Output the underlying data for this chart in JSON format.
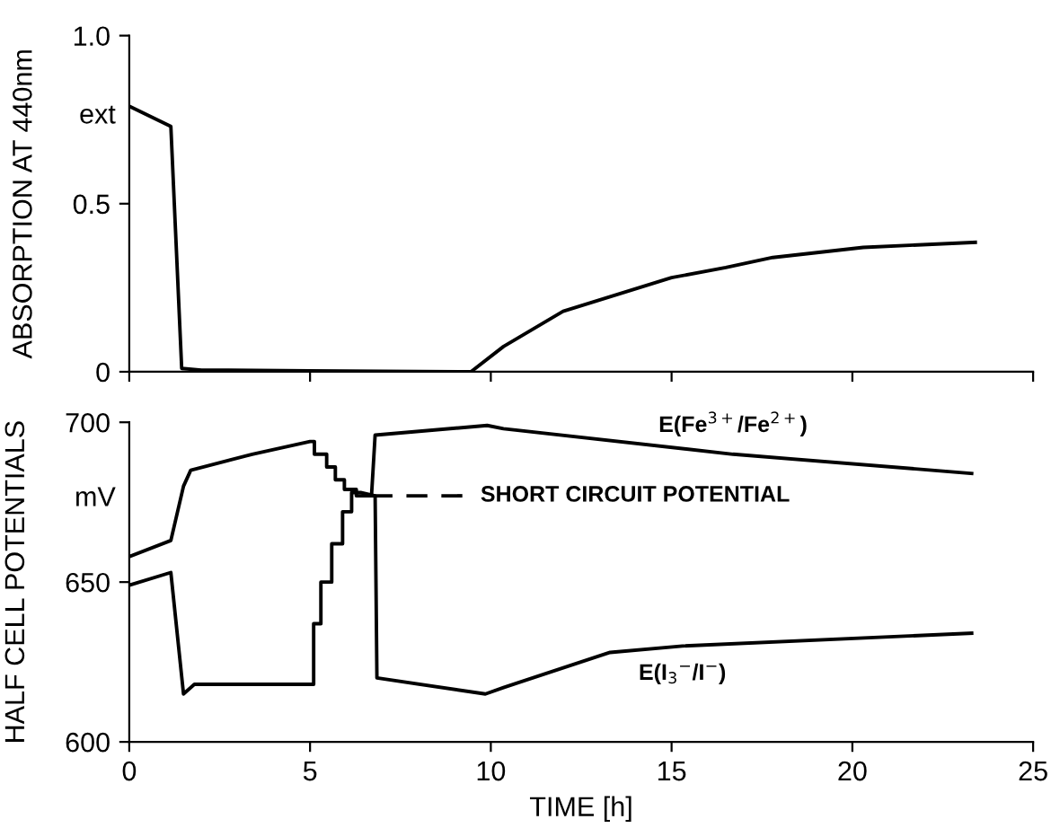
{
  "chart_data": [
    {
      "type": "line",
      "ylabel": "ABSORPTION AT 440nm",
      "annotations": [
        "ext"
      ],
      "xlim": [
        0,
        25
      ],
      "xticks": [
        0,
        5,
        10,
        15,
        20,
        25
      ],
      "ylim": [
        0,
        1.0
      ],
      "yticks": [
        0,
        {
          "value": 0.5,
          "label": "0.5"
        },
        {
          "value": 1.0,
          "label": "1.0"
        }
      ],
      "tick_labels": "y",
      "grid": false,
      "legend": false,
      "marker": "none",
      "series": [
        {
          "color": "#000000",
          "line_style": "solid",
          "x": [
            0,
            1.15,
            1.45,
            2,
            5,
            9.45,
            10.35,
            12.0,
            13.5,
            15.0,
            16.5,
            17.8,
            20.3,
            23.4
          ],
          "values": [
            0.79,
            0.73,
            0.01,
            0.005,
            0.003,
            0,
            0.075,
            0.18,
            0.23,
            0.28,
            0.31,
            0.34,
            0.37,
            0.385
          ]
        }
      ]
    },
    {
      "type": "line",
      "xlabel": "TIME [h]",
      "ylabel": "HALF CELL POTENTIALS",
      "annotations": [
        "mV"
      ],
      "xlim": [
        0,
        25
      ],
      "xticks": [
        0,
        5,
        10,
        15,
        20,
        25
      ],
      "ylim": [
        600,
        700
      ],
      "yticks": [
        600,
        650,
        700
      ],
      "grid": false,
      "legend": false,
      "marker": "none",
      "series": [
        {
          "name": "E(Fe$^{3+}$/Fe$^{2+}$)",
          "color": "#000000",
          "line_style": "solid",
          "x": [
            0,
            1.15,
            1.5,
            1.7,
            3.4,
            5.0,
            5.12,
            5.12,
            5.46,
            5.46,
            5.7,
            5.7,
            5.95,
            5.95,
            6.28,
            6.28,
            6.7,
            6.8,
            9.9,
            10.35,
            16.7,
            23.3
          ],
          "values": [
            658,
            663,
            680,
            685,
            690,
            694,
            694,
            690,
            690,
            686,
            686,
            682,
            682,
            679,
            679,
            677,
            677,
            696,
            699,
            698,
            690,
            684
          ]
        },
        {
          "name": "E(I$_{3}$$^{−}$/I$^{−}$)",
          "color": "#000000",
          "line_style": "solid",
          "x": [
            0,
            1.15,
            1.5,
            1.8,
            5.1,
            5.1,
            5.3,
            5.3,
            5.6,
            5.6,
            5.9,
            5.9,
            6.15,
            6.15,
            6.4,
            6.8,
            6.85,
            9.85,
            10.35,
            13.3,
            15.3,
            23.3
          ],
          "values": [
            649,
            653,
            615,
            618,
            618,
            637,
            637,
            650,
            650,
            662,
            662,
            672,
            672,
            678,
            678,
            677,
            620,
            615,
            617,
            628,
            630,
            634
          ]
        },
        {
          "name": "SHORT CIRCUIT POTENTIAL",
          "color": "#000000",
          "line_style": "dashed",
          "x": [
            6.7,
            9.3
          ],
          "values": [
            677,
            677
          ]
        }
      ]
    }
  ]
}
